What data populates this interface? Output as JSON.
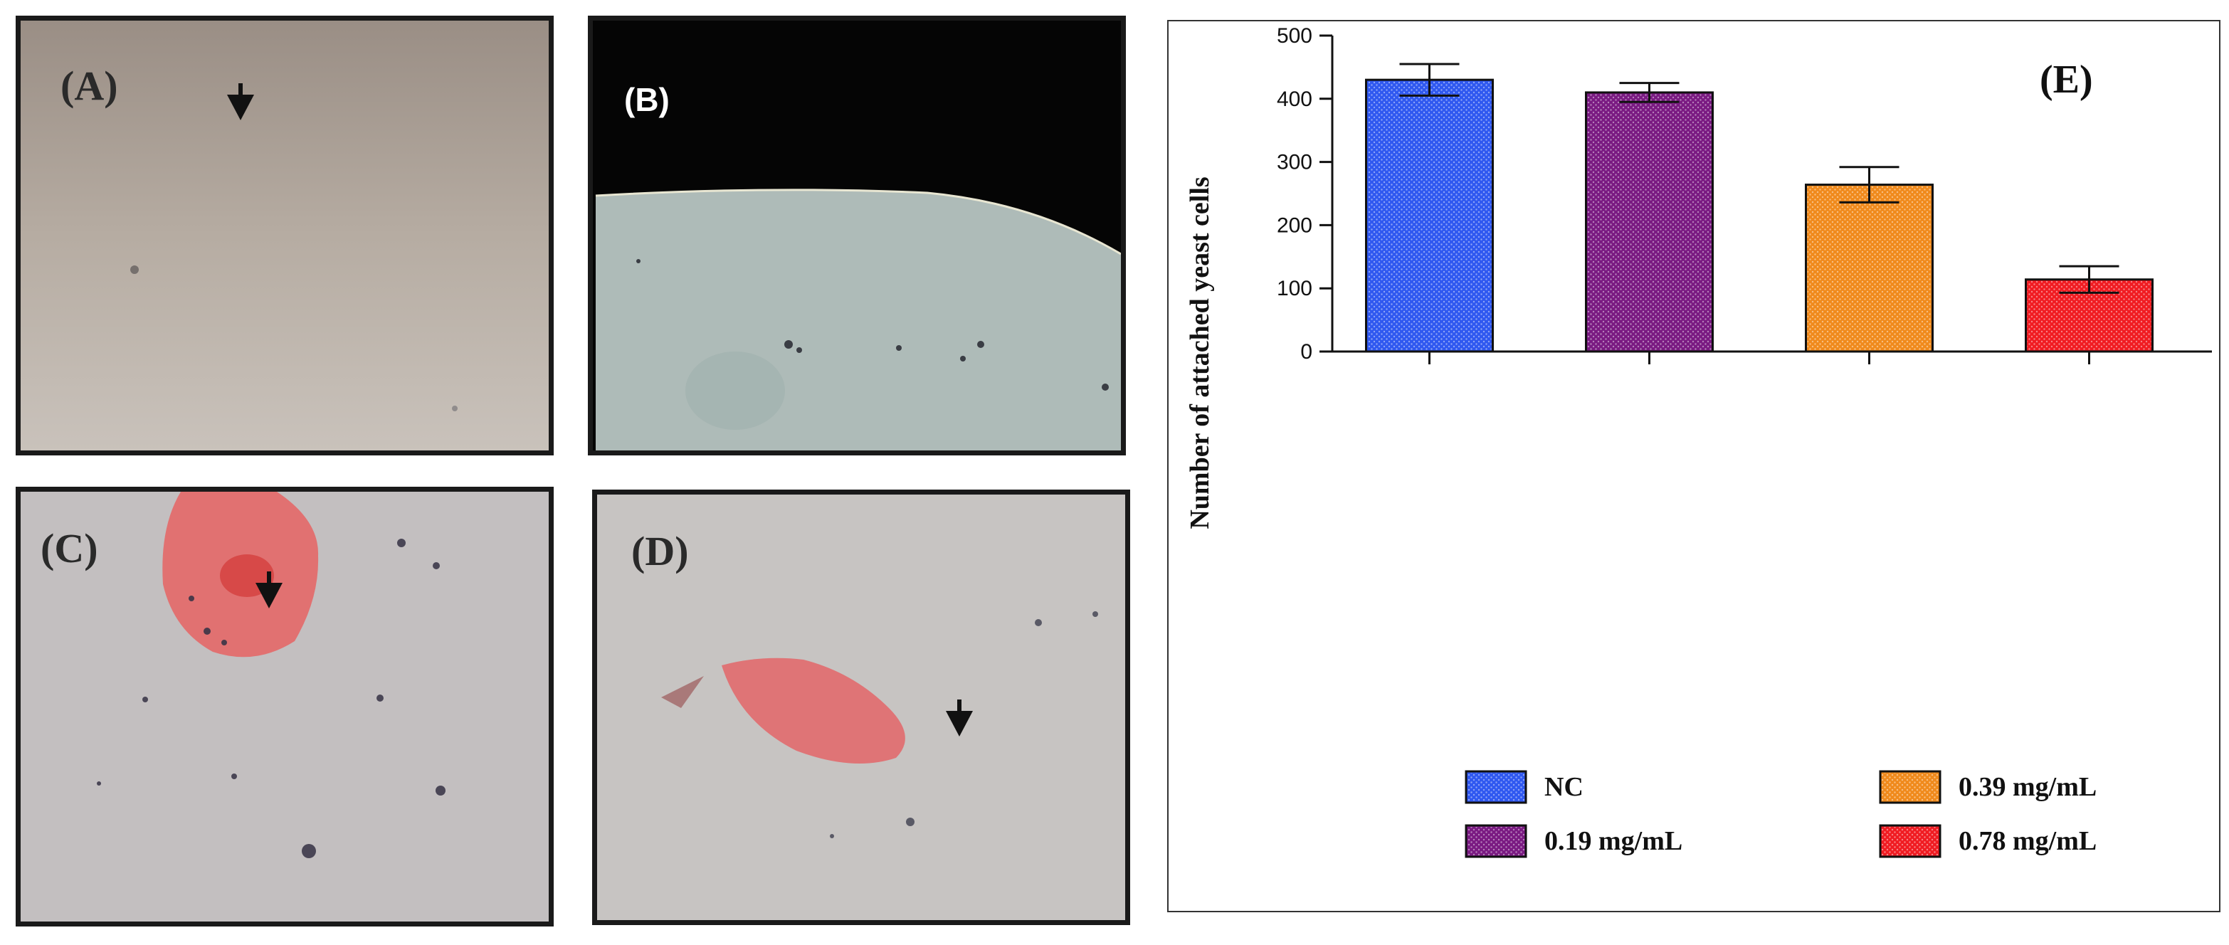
{
  "panels": {
    "a": {
      "label": "(A)"
    },
    "b": {
      "label": "(B)"
    },
    "c": {
      "label": "(C)"
    },
    "d": {
      "label": "(D)"
    }
  },
  "chart_data": {
    "type": "bar",
    "panel_label": "(E)",
    "title": "",
    "xlabel": "",
    "ylabel": "Number of attached yeast cells",
    "ylim": [
      0,
      500
    ],
    "yticks": [
      0,
      100,
      200,
      300,
      400,
      500
    ],
    "categories": [
      "NC",
      "0.19 mg/mL",
      "0.39 mg/mL",
      "0.78 mg/mL"
    ],
    "values": [
      430,
      410,
      264,
      114
    ],
    "errors": [
      25,
      15,
      28,
      21
    ],
    "colors": [
      "#2f58f0",
      "#7a1a82",
      "#f08a1c",
      "#f01c22"
    ],
    "legend": {
      "placement": "bottom",
      "columns": 2
    },
    "grid": false
  }
}
